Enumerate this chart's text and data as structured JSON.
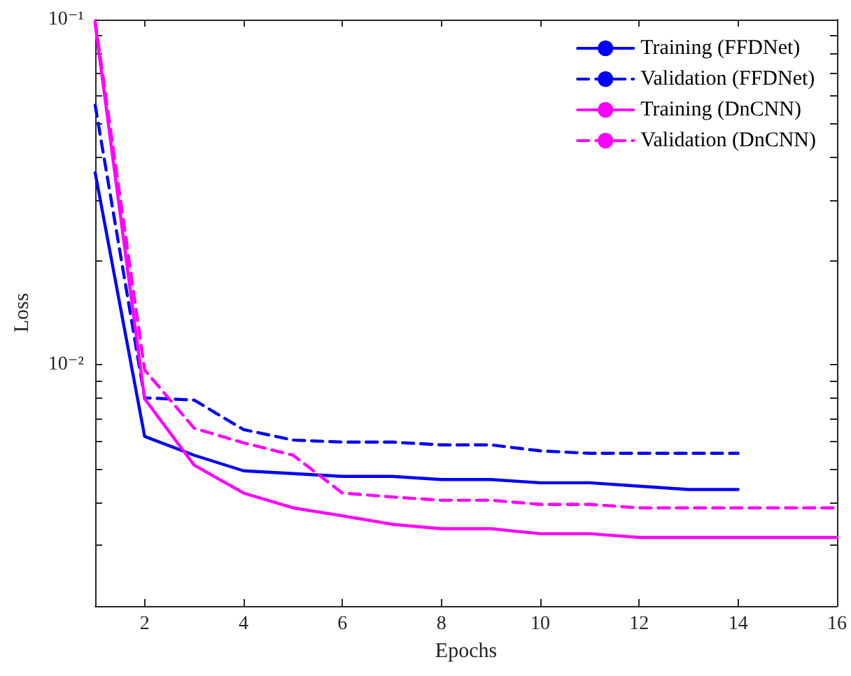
{
  "chart_data": {
    "type": "line",
    "xlabel": "Epochs",
    "ylabel": "Loss",
    "x": [
      1,
      2,
      3,
      4,
      5,
      6,
      7,
      8,
      9,
      10,
      11,
      12,
      13,
      14,
      15,
      16
    ],
    "log": "y",
    "grid": false,
    "legend": "top right",
    "marker": "none",
    "xlim": [
      1,
      16
    ],
    "xticks": [
      2,
      4,
      6,
      8,
      10,
      12,
      14,
      16
    ],
    "ylim": [
      0.002,
      0.1
    ],
    "yticks": [
      {
        "value": 0.003,
        "label": null
      },
      {
        "value": 0.004,
        "label": null
      },
      {
        "value": 0.005,
        "label": null
      },
      {
        "value": 0.006,
        "label": null
      },
      {
        "value": 0.007,
        "label": null
      },
      {
        "value": 0.008,
        "label": null
      },
      {
        "value": 0.009,
        "label": null
      },
      {
        "value": 0.01,
        "label": "10⁻²"
      },
      {
        "value": 0.02,
        "label": null
      },
      {
        "value": 0.03,
        "label": null
      },
      {
        "value": 0.04,
        "label": null
      },
      {
        "value": 0.05,
        "label": null
      },
      {
        "value": 0.06,
        "label": null
      },
      {
        "value": 0.07,
        "label": null
      },
      {
        "value": 0.08,
        "label": null
      },
      {
        "value": 0.09,
        "label": null
      },
      {
        "value": 0.1,
        "label": "10⁻¹"
      }
    ],
    "series": [
      {
        "name": "Training (FFDNet)",
        "color": "#0000ff",
        "line_style": "solid",
        "values": [
          0.036,
          0.0062,
          0.00547,
          0.00493,
          0.00484,
          0.00475,
          0.00475,
          0.00465,
          0.00465,
          0.00455,
          0.00455,
          0.00445,
          0.00435,
          0.00435,
          null,
          null
        ]
      },
      {
        "name": "Validation (FFDNet)",
        "color": "#0000ff",
        "line_style": "dashed",
        "values": [
          0.0565,
          0.00802,
          0.0079,
          0.00649,
          0.00605,
          0.00597,
          0.00597,
          0.00586,
          0.00586,
          0.00563,
          0.00554,
          0.00554,
          0.00554,
          0.00554,
          null,
          null
        ]
      },
      {
        "name": "Training (DnCNN)",
        "color": "#ff00ff",
        "line_style": "solid",
        "values": [
          0.097,
          0.00797,
          0.00512,
          0.00425,
          0.00385,
          0.00365,
          0.00345,
          0.00335,
          0.00335,
          0.00324,
          0.00324,
          0.00316,
          0.00316,
          0.00316,
          0.00316,
          0.00316
        ]
      },
      {
        "name": "Validation (DnCNN)",
        "color": "#ff00ff",
        "line_style": "dashed",
        "values": [
          0.099,
          0.00966,
          0.00655,
          0.00594,
          0.00547,
          0.00425,
          0.00414,
          0.00405,
          0.00405,
          0.00394,
          0.00394,
          0.00385,
          0.00385,
          0.00385,
          0.00385,
          0.00385
        ]
      }
    ]
  }
}
